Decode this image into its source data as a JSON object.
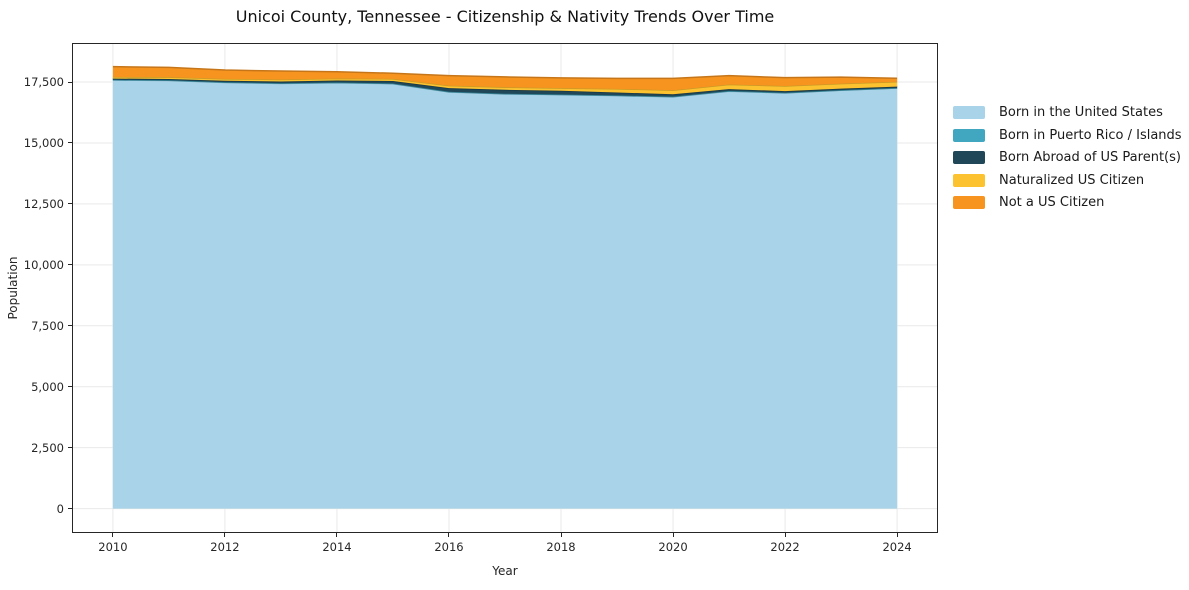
{
  "chart_data": {
    "type": "area",
    "stacked": true,
    "title": "Unicoi County, Tennessee - Citizenship & Nativity Trends Over Time",
    "xlabel": "Year",
    "ylabel": "Population",
    "x": [
      2010,
      2011,
      2012,
      2013,
      2014,
      2015,
      2016,
      2017,
      2018,
      2019,
      2020,
      2021,
      2022,
      2023,
      2024
    ],
    "series": [
      {
        "name": "Born in the United States",
        "color": "#A9D3E8",
        "values": [
          17580,
          17560,
          17480,
          17440,
          17470,
          17430,
          17090,
          17010,
          16980,
          16940,
          16890,
          17120,
          17050,
          17160,
          17250
        ]
      },
      {
        "name": "Born in Puerto Rico / Islands",
        "color": "#41A7C1",
        "values": [
          10,
          10,
          10,
          10,
          10,
          10,
          10,
          10,
          10,
          10,
          10,
          10,
          10,
          8,
          5
        ]
      },
      {
        "name": "Born Abroad of US Parent(s)",
        "color": "#1F4757",
        "values": [
          50,
          55,
          60,
          70,
          80,
          100,
          150,
          160,
          150,
          120,
          100,
          80,
          65,
          60,
          55
        ]
      },
      {
        "name": "Naturalized US Citizen",
        "color": "#FCC230",
        "values": [
          70,
          75,
          80,
          85,
          85,
          90,
          100,
          105,
          110,
          150,
          160,
          190,
          210,
          205,
          200
        ]
      },
      {
        "name": "Not a US Citizen",
        "color": "#F7941F",
        "values": [
          420,
          400,
          360,
          345,
          275,
          230,
          410,
          425,
          420,
          430,
          490,
          360,
          345,
          265,
          145
        ]
      }
    ],
    "yticks": [
      0,
      2500,
      5000,
      7500,
      10000,
      12500,
      15000,
      17500
    ],
    "xticks": [
      2010,
      2012,
      2014,
      2016,
      2018,
      2020,
      2022,
      2024
    ],
    "xlim": [
      2009.27,
      2024.73
    ],
    "ylim": [
      -1000,
      19100
    ],
    "grid": true,
    "legend_position": "right",
    "colors": {
      "spine": "#262626",
      "gridline": "#E9E9E9",
      "background": "#FFFFFF"
    }
  }
}
